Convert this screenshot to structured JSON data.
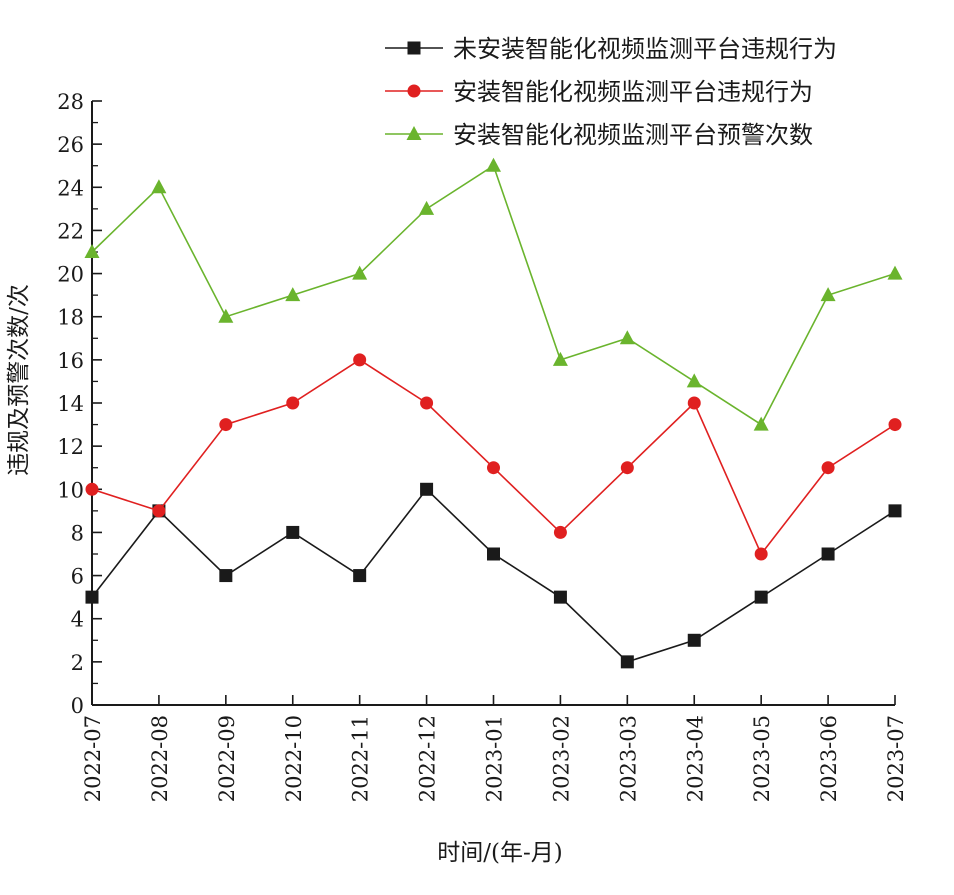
{
  "chart_data": {
    "type": "line",
    "xlabel": "时间/(年-月)",
    "ylabel": "违规及预警次数/次",
    "ylim": [
      0,
      28
    ],
    "y_ticks": [
      0,
      2,
      4,
      6,
      8,
      10,
      12,
      14,
      16,
      18,
      20,
      22,
      24,
      26,
      28
    ],
    "categories": [
      "2022-07",
      "2022-08",
      "2022-09",
      "2022-10",
      "2022-11",
      "2022-12",
      "2023-01",
      "2023-02",
      "2023-03",
      "2023-04",
      "2023-05",
      "2023-06",
      "2023-07"
    ],
    "grid": false,
    "legend_position": "top-right",
    "series": [
      {
        "name": "未安装智能化视频监测平台违规行为",
        "marker": "square",
        "color": "#1a1a1a",
        "values": [
          5,
          9,
          6,
          8,
          6,
          10,
          7,
          5,
          2,
          3,
          5,
          7,
          9
        ]
      },
      {
        "name": "安装智能化视频监测平台违规行为",
        "marker": "circle",
        "color": "#e02020",
        "values": [
          10,
          9,
          13,
          14,
          16,
          14,
          11,
          8,
          11,
          14,
          7,
          11,
          13
        ]
      },
      {
        "name": "安装智能化视频监测平台预警次数",
        "marker": "triangle",
        "color": "#6ab42d",
        "values": [
          21,
          24,
          18,
          19,
          20,
          23,
          25,
          16,
          17,
          15,
          13,
          19,
          20
        ]
      }
    ]
  }
}
